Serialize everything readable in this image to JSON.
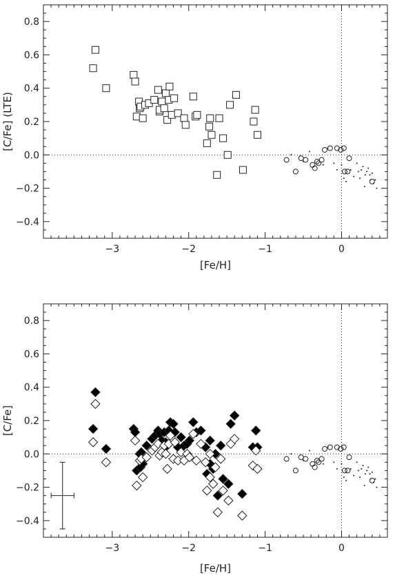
{
  "chart_data": [
    {
      "type": "scatter",
      "xlabel": "[Fe/H]",
      "ylabel": "[C/Fe] (LTE)",
      "xlim": [
        -3.9,
        0.6
      ],
      "ylim": [
        -0.5,
        0.9
      ],
      "x_ticks": [
        -3,
        -2,
        -1,
        0
      ],
      "x_tick_labels": [
        "−3",
        "−2",
        "−1",
        "0"
      ],
      "y_ticks": [
        -0.4,
        -0.2,
        0.0,
        0.2,
        0.4,
        0.6,
        0.8
      ],
      "y_tick_labels": [
        "−0.4",
        "−0.2",
        "0.0",
        "0.2",
        "0.4",
        "0.6",
        "0.8"
      ],
      "reference_lines": {
        "y": 0.0,
        "x": 0.0,
        "style": "dotted"
      },
      "series": [
        {
          "marker": "open-square",
          "points": [
            [
              -3.25,
              0.52
            ],
            [
              -3.22,
              0.63
            ],
            [
              -3.08,
              0.4
            ],
            [
              -2.72,
              0.48
            ],
            [
              -2.7,
              0.44
            ],
            [
              -2.68,
              0.23
            ],
            [
              -2.65,
              0.32
            ],
            [
              -2.64,
              0.28
            ],
            [
              -2.63,
              0.29
            ],
            [
              -2.6,
              0.22
            ],
            [
              -2.57,
              0.3
            ],
            [
              -2.52,
              0.31
            ],
            [
              -2.45,
              0.33
            ],
            [
              -2.4,
              0.39
            ],
            [
              -2.38,
              0.26
            ],
            [
              -2.38,
              0.27
            ],
            [
              -2.35,
              0.32
            ],
            [
              -2.32,
              0.28
            ],
            [
              -2.3,
              0.37
            ],
            [
              -2.28,
              0.21
            ],
            [
              -2.26,
              0.33
            ],
            [
              -2.25,
              0.41
            ],
            [
              -2.22,
              0.24
            ],
            [
              -2.19,
              0.34
            ],
            [
              -2.14,
              0.25
            ],
            [
              -2.06,
              0.22
            ],
            [
              -2.04,
              0.18
            ],
            [
              -1.94,
              0.35
            ],
            [
              -1.91,
              0.23
            ],
            [
              -1.89,
              0.24
            ],
            [
              -1.76,
              0.07
            ],
            [
              -1.73,
              0.17
            ],
            [
              -1.72,
              0.22
            ],
            [
              -1.7,
              0.12
            ],
            [
              -1.63,
              -0.12
            ],
            [
              -1.6,
              0.22
            ],
            [
              -1.55,
              0.1
            ],
            [
              -1.49,
              0.0
            ],
            [
              -1.46,
              0.3
            ],
            [
              -1.38,
              0.36
            ],
            [
              -1.29,
              -0.09
            ],
            [
              -1.15,
              0.2
            ],
            [
              -1.13,
              0.27
            ],
            [
              -1.1,
              0.12
            ]
          ]
        },
        {
          "marker": "open-circle",
          "points": [
            [
              -0.72,
              -0.03
            ],
            [
              -0.6,
              -0.1
            ],
            [
              -0.53,
              -0.02
            ],
            [
              -0.47,
              -0.03
            ],
            [
              -0.38,
              -0.06
            ],
            [
              -0.35,
              -0.08
            ],
            [
              -0.32,
              -0.04
            ],
            [
              -0.3,
              -0.05
            ],
            [
              -0.26,
              -0.03
            ],
            [
              -0.22,
              0.03
            ],
            [
              -0.15,
              0.04
            ],
            [
              -0.06,
              0.04
            ],
            [
              -0.01,
              0.03
            ],
            [
              0.03,
              0.04
            ],
            [
              0.04,
              -0.1
            ],
            [
              0.08,
              -0.1
            ],
            [
              0.1,
              -0.02
            ],
            [
              0.4,
              -0.16
            ]
          ]
        },
        {
          "marker": "dot",
          "points": [
            [
              -0.66,
              0.0
            ],
            [
              -0.5,
              -0.04
            ],
            [
              -0.42,
              0.02
            ],
            [
              -0.24,
              -0.06
            ],
            [
              -0.18,
              0.04
            ],
            [
              -0.1,
              -0.05
            ],
            [
              -0.06,
              -0.09
            ],
            [
              0.0,
              -0.06
            ],
            [
              0.03,
              -0.14
            ],
            [
              0.06,
              -0.16
            ],
            [
              0.12,
              -0.09
            ],
            [
              0.16,
              -0.13
            ],
            [
              0.2,
              -0.05
            ],
            [
              0.22,
              -0.1
            ],
            [
              0.24,
              -0.14
            ],
            [
              0.26,
              -0.09
            ],
            [
              0.28,
              -0.07
            ],
            [
              0.3,
              -0.19
            ],
            [
              0.31,
              -0.12
            ],
            [
              0.33,
              -0.1
            ],
            [
              0.35,
              -0.08
            ],
            [
              0.37,
              -0.12
            ],
            [
              0.38,
              -0.15
            ],
            [
              0.4,
              -0.11
            ],
            [
              0.42,
              -0.17
            ],
            [
              0.44,
              -0.15
            ],
            [
              0.46,
              -0.2
            ]
          ]
        }
      ]
    },
    {
      "type": "scatter",
      "xlabel": "[Fe/H]",
      "ylabel": "[C/Fe]",
      "xlim": [
        -3.9,
        0.6
      ],
      "ylim": [
        -0.5,
        0.9
      ],
      "x_ticks": [
        -3,
        -2,
        -1,
        0
      ],
      "x_tick_labels": [
        "−3",
        "−2",
        "−1",
        "0"
      ],
      "y_ticks": [
        -0.4,
        -0.2,
        0.0,
        0.2,
        0.4,
        0.6,
        0.8
      ],
      "y_tick_labels": [
        "−0.4",
        "−0.2",
        "0.0",
        "0.2",
        "0.4",
        "0.6",
        "0.8"
      ],
      "reference_lines": {
        "y": 0.0,
        "x": 0.0,
        "style": "dotted"
      },
      "error_bar": {
        "x": -3.65,
        "y": -0.25,
        "xerr": 0.15,
        "yerr": 0.2
      },
      "series": [
        {
          "marker": "filled-diamond",
          "points": [
            [
              -3.22,
              0.37
            ],
            [
              -3.25,
              0.15
            ],
            [
              -3.08,
              0.03
            ],
            [
              -2.72,
              0.15
            ],
            [
              -2.7,
              0.13
            ],
            [
              -2.68,
              -0.1
            ],
            [
              -2.64,
              0.0
            ],
            [
              -2.62,
              0.01
            ],
            [
              -2.63,
              -0.08
            ],
            [
              -2.6,
              -0.06
            ],
            [
              -2.55,
              0.05
            ],
            [
              -2.48,
              0.09
            ],
            [
              -2.44,
              0.11
            ],
            [
              -2.4,
              0.14
            ],
            [
              -2.38,
              0.12
            ],
            [
              -2.35,
              0.08
            ],
            [
              -2.32,
              0.13
            ],
            [
              -2.3,
              0.07
            ],
            [
              -2.28,
              0.05
            ],
            [
              -2.26,
              0.14
            ],
            [
              -2.24,
              0.19
            ],
            [
              -2.2,
              0.18
            ],
            [
              -2.18,
              0.13
            ],
            [
              -2.14,
              0.04
            ],
            [
              -2.1,
              0.1
            ],
            [
              -2.06,
              0.05
            ],
            [
              -2.02,
              0.06
            ],
            [
              -1.99,
              0.08
            ],
            [
              -1.94,
              0.19
            ],
            [
              -1.9,
              0.13
            ],
            [
              -1.84,
              0.14
            ],
            [
              -1.78,
              0.04
            ],
            [
              -1.76,
              -0.12
            ],
            [
              -1.72,
              0.08
            ],
            [
              -1.72,
              -0.06
            ],
            [
              -1.68,
              -0.09
            ],
            [
              -1.65,
              0.0
            ],
            [
              -1.62,
              -0.25
            ],
            [
              -1.58,
              0.05
            ],
            [
              -1.55,
              -0.15
            ],
            [
              -1.48,
              -0.18
            ],
            [
              -1.45,
              0.18
            ],
            [
              -1.4,
              0.23
            ],
            [
              -1.3,
              -0.24
            ],
            [
              -1.16,
              0.04
            ],
            [
              -1.12,
              0.14
            ],
            [
              -1.1,
              0.04
            ]
          ]
        },
        {
          "marker": "open-diamond",
          "points": [
            [
              -3.22,
              0.3
            ],
            [
              -3.25,
              0.07
            ],
            [
              -3.08,
              -0.05
            ],
            [
              -2.7,
              0.08
            ],
            [
              -2.68,
              -0.19
            ],
            [
              -2.64,
              -0.04
            ],
            [
              -2.62,
              -0.03
            ],
            [
              -2.6,
              -0.14
            ],
            [
              -2.55,
              -0.02
            ],
            [
              -2.48,
              0.02
            ],
            [
              -2.44,
              0.04
            ],
            [
              -2.4,
              0.06
            ],
            [
              -2.38,
              -0.01
            ],
            [
              -2.35,
              0.01
            ],
            [
              -2.32,
              0.05
            ],
            [
              -2.3,
              0.0
            ],
            [
              -2.28,
              -0.09
            ],
            [
              -2.26,
              0.06
            ],
            [
              -2.24,
              0.11
            ],
            [
              -2.2,
              -0.03
            ],
            [
              -2.18,
              0.07
            ],
            [
              -2.14,
              -0.04
            ],
            [
              -2.1,
              0.01
            ],
            [
              -2.06,
              -0.04
            ],
            [
              -2.02,
              0.0
            ],
            [
              -1.99,
              -0.02
            ],
            [
              -1.94,
              0.12
            ],
            [
              -1.9,
              -0.04
            ],
            [
              -1.84,
              0.06
            ],
            [
              -1.78,
              -0.05
            ],
            [
              -1.76,
              -0.22
            ],
            [
              -1.72,
              0.0
            ],
            [
              -1.72,
              -0.14
            ],
            [
              -1.68,
              -0.18
            ],
            [
              -1.65,
              -0.08
            ],
            [
              -1.62,
              -0.35
            ],
            [
              -1.58,
              -0.03
            ],
            [
              -1.55,
              -0.22
            ],
            [
              -1.48,
              -0.28
            ],
            [
              -1.45,
              0.06
            ],
            [
              -1.4,
              0.09
            ],
            [
              -1.3,
              -0.37
            ],
            [
              -1.16,
              -0.07
            ],
            [
              -1.12,
              0.02
            ],
            [
              -1.1,
              -0.09
            ]
          ]
        },
        {
          "marker": "open-circle",
          "points": [
            [
              -0.72,
              -0.03
            ],
            [
              -0.6,
              -0.1
            ],
            [
              -0.53,
              -0.02
            ],
            [
              -0.47,
              -0.03
            ],
            [
              -0.38,
              -0.06
            ],
            [
              -0.35,
              -0.08
            ],
            [
              -0.32,
              -0.04
            ],
            [
              -0.3,
              -0.05
            ],
            [
              -0.26,
              -0.03
            ],
            [
              -0.22,
              0.03
            ],
            [
              -0.15,
              0.04
            ],
            [
              -0.06,
              0.04
            ],
            [
              -0.01,
              0.03
            ],
            [
              0.03,
              0.04
            ],
            [
              0.04,
              -0.1
            ],
            [
              0.08,
              -0.1
            ],
            [
              0.1,
              -0.02
            ],
            [
              0.4,
              -0.16
            ]
          ]
        },
        {
          "marker": "dot",
          "points": [
            [
              -0.66,
              0.0
            ],
            [
              -0.5,
              -0.04
            ],
            [
              -0.42,
              0.02
            ],
            [
              -0.24,
              -0.06
            ],
            [
              -0.18,
              0.04
            ],
            [
              -0.1,
              -0.05
            ],
            [
              -0.06,
              -0.09
            ],
            [
              0.0,
              -0.06
            ],
            [
              0.03,
              -0.14
            ],
            [
              0.06,
              -0.16
            ],
            [
              0.12,
              -0.09
            ],
            [
              0.16,
              -0.13
            ],
            [
              0.2,
              -0.05
            ],
            [
              0.22,
              -0.1
            ],
            [
              0.24,
              -0.14
            ],
            [
              0.26,
              -0.09
            ],
            [
              0.28,
              -0.07
            ],
            [
              0.3,
              -0.19
            ],
            [
              0.31,
              -0.12
            ],
            [
              0.33,
              -0.1
            ],
            [
              0.35,
              -0.08
            ],
            [
              0.37,
              -0.12
            ],
            [
              0.38,
              -0.15
            ],
            [
              0.4,
              -0.11
            ],
            [
              0.42,
              -0.17
            ],
            [
              0.44,
              -0.15
            ],
            [
              0.46,
              -0.2
            ]
          ]
        }
      ]
    }
  ]
}
